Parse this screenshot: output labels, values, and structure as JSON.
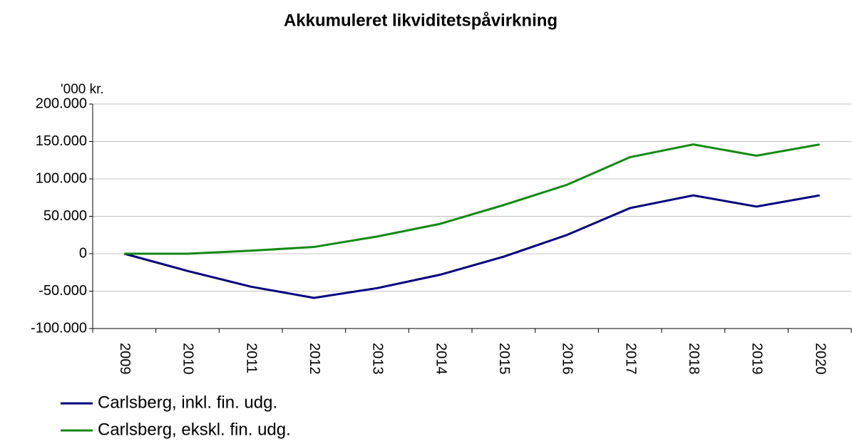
{
  "chart_data": {
    "type": "line",
    "title": "Akkumuleret likviditetspåvirkning",
    "y_label": "'000 kr.",
    "categories": [
      "2009",
      "2010",
      "2011",
      "2012",
      "2013",
      "2014",
      "2015",
      "2016",
      "2017",
      "2018",
      "2019",
      "2020"
    ],
    "series": [
      {
        "name": "Carlsberg, inkl. fin. udg.",
        "color": "#000080",
        "values": [
          0,
          -23000,
          -44000,
          -59000,
          -46000,
          -28000,
          -4000,
          25000,
          61000,
          78000,
          63000,
          78000
        ]
      },
      {
        "name": "Carlsberg, ekskl. fin. udg.",
        "color": "#138a13",
        "values": [
          0,
          0,
          4000,
          9000,
          23000,
          40000,
          65000,
          92000,
          129000,
          146000,
          131000,
          146000
        ]
      }
    ],
    "ylim": [
      -100000,
      200000
    ],
    "yticks": [
      {
        "value": -100000,
        "label": "-100.000"
      },
      {
        "value": -50000,
        "label": "-50.000"
      },
      0,
      {
        "value": 50000,
        "label": "50.000"
      },
      {
        "value": 100000,
        "label": "100.000"
      },
      {
        "value": 150000,
        "label": "150.000"
      },
      {
        "value": 200000,
        "label": "200.000"
      }
    ],
    "grid": true
  }
}
